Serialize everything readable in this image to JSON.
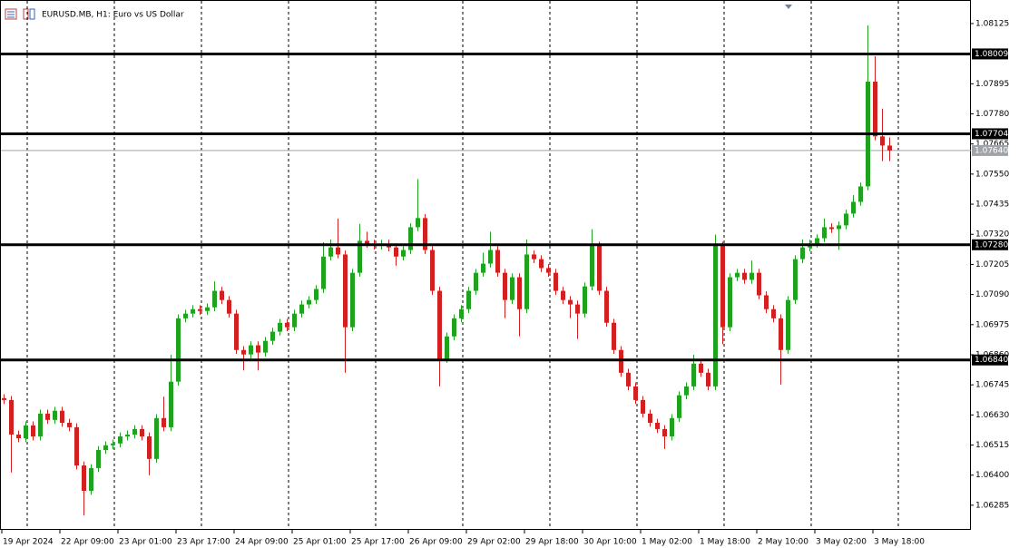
{
  "chart_data": {
    "type": "candlestick",
    "title": "EURUSD.MB, H1: Euro vs US Dollar",
    "up_color": "#1fa31f",
    "down_color": "#d22020",
    "ylim": [
      1.06191,
      1.08215
    ],
    "yticks": [
      {
        "value": 1.08125,
        "label": "1.08125"
      },
      {
        "value": 1.07895,
        "label": "1.07895"
      },
      {
        "value": 1.0778,
        "label": "1.07780"
      },
      {
        "value": 1.07665,
        "label": "1.07665"
      },
      {
        "value": 1.0755,
        "label": "1.07550"
      },
      {
        "value": 1.07435,
        "label": "1.07435"
      },
      {
        "value": 1.0732,
        "label": "1.07320"
      },
      {
        "value": 1.07205,
        "label": "1.07205"
      },
      {
        "value": 1.0709,
        "label": "1.07090"
      },
      {
        "value": 1.06975,
        "label": "1.06975"
      },
      {
        "value": 1.0686,
        "label": "1.06860"
      },
      {
        "value": 1.06745,
        "label": "1.06745"
      },
      {
        "value": 1.0663,
        "label": "1.06630"
      },
      {
        "value": 1.06515,
        "label": "1.06515"
      },
      {
        "value": 1.064,
        "label": "1.06400"
      },
      {
        "value": 1.06285,
        "label": "1.06285"
      }
    ],
    "xticks": [
      {
        "value": 0,
        "label": "19 Apr 2024"
      },
      {
        "value": 8,
        "label": "22 Apr 09:00"
      },
      {
        "value": 16,
        "label": "23 Apr 01:00"
      },
      {
        "value": 24,
        "label": "23 Apr 17:00"
      },
      {
        "value": 32,
        "label": "24 Apr 09:00"
      },
      {
        "value": 40,
        "label": "25 Apr 01:00"
      },
      {
        "value": 48,
        "label": "25 Apr 17:00"
      },
      {
        "value": 56,
        "label": "26 Apr 09:00"
      },
      {
        "value": 64,
        "label": "29 Apr 02:00"
      },
      {
        "value": 72,
        "label": "29 Apr 18:00"
      },
      {
        "value": 80,
        "label": "30 Apr 10:00"
      },
      {
        "value": 88,
        "label": "1 May 02:00"
      },
      {
        "value": 96,
        "label": "1 May 18:00"
      },
      {
        "value": 104,
        "label": "2 May 10:00"
      },
      {
        "value": 112,
        "label": "3 May 02:00"
      },
      {
        "value": 120,
        "label": "3 May 18:00"
      }
    ],
    "levels": [
      {
        "value": 1.08009,
        "label": "1.08009"
      },
      {
        "value": 1.07704,
        "label": "1.07704"
      },
      {
        "value": 1.0728,
        "label": "1.07280"
      },
      {
        "value": 1.0684,
        "label": "1.06840"
      }
    ],
    "current_price": {
      "value": 1.0764,
      "label": "1.07640"
    },
    "candles": [
      [
        1.06694,
        1.06709,
        1.06672,
        1.06687
      ],
      [
        1.06687,
        1.06702,
        1.0641,
        1.06555
      ],
      [
        1.06555,
        1.0657,
        1.06526,
        1.06541
      ],
      [
        1.06541,
        1.06605,
        1.06526,
        1.0659
      ],
      [
        1.0659,
        1.06605,
        1.06533,
        1.06548
      ],
      [
        1.06548,
        1.0665,
        1.06533,
        1.06635
      ],
      [
        1.06635,
        1.0665,
        1.06596,
        1.06611
      ],
      [
        1.06611,
        1.06661,
        1.06596,
        1.06646
      ],
      [
        1.06646,
        1.06661,
        1.06585,
        1.066
      ],
      [
        1.066,
        1.06615,
        1.06568,
        1.06583
      ],
      [
        1.06583,
        1.06598,
        1.06422,
        1.06437
      ],
      [
        1.06437,
        1.06452,
        1.06246,
        1.0634
      ],
      [
        1.0634,
        1.06442,
        1.06325,
        1.06427
      ],
      [
        1.06427,
        1.06511,
        1.06412,
        1.06496
      ],
      [
        1.06496,
        1.06529,
        1.06481,
        1.06514
      ],
      [
        1.06514,
        1.06536,
        1.06499,
        1.06521
      ],
      [
        1.06521,
        1.06563,
        1.06506,
        1.06548
      ],
      [
        1.06548,
        1.0657,
        1.06533,
        1.06555
      ],
      [
        1.06555,
        1.06591,
        1.0654,
        1.06576
      ],
      [
        1.06576,
        1.06591,
        1.06533,
        1.06548
      ],
      [
        1.06548,
        1.06563,
        1.064,
        1.06462
      ],
      [
        1.06462,
        1.06633,
        1.06447,
        1.06618
      ],
      [
        1.06618,
        1.067,
        1.06568,
        1.06583
      ],
      [
        1.06583,
        1.0686,
        1.06568,
        1.06757
      ],
      [
        1.06757,
        1.07014,
        1.06742,
        1.06999
      ],
      [
        1.06999,
        1.07032,
        1.06984,
        1.07017
      ],
      [
        1.07017,
        1.07049,
        1.07002,
        1.07034
      ],
      [
        1.07034,
        1.07049,
        1.07012,
        1.07027
      ],
      [
        1.07027,
        1.07056,
        1.07012,
        1.07041
      ],
      [
        1.07041,
        1.0714,
        1.07026,
        1.07104
      ],
      [
        1.07104,
        1.07119,
        1.07054,
        1.07069
      ],
      [
        1.07069,
        1.07084,
        1.07002,
        1.07017
      ],
      [
        1.07017,
        1.07032,
        1.06863,
        1.06878
      ],
      [
        1.06878,
        1.06893,
        1.068,
        1.06861
      ],
      [
        1.06861,
        1.06911,
        1.06846,
        1.06896
      ],
      [
        1.06896,
        1.06911,
        1.068,
        1.06868
      ],
      [
        1.06868,
        1.06928,
        1.06853,
        1.06913
      ],
      [
        1.06913,
        1.06963,
        1.06898,
        1.06948
      ],
      [
        1.06948,
        1.06997,
        1.06933,
        1.06982
      ],
      [
        1.06982,
        1.06997,
        1.0695,
        1.06965
      ],
      [
        1.06965,
        1.07032,
        1.0695,
        1.07017
      ],
      [
        1.07017,
        1.07067,
        1.07002,
        1.07052
      ],
      [
        1.07052,
        1.07084,
        1.07037,
        1.07069
      ],
      [
        1.07069,
        1.07126,
        1.07054,
        1.07111
      ],
      [
        1.07111,
        1.0729,
        1.07096,
        1.07235
      ],
      [
        1.07235,
        1.073,
        1.0722,
        1.0727
      ],
      [
        1.0727,
        1.0738,
        1.07228,
        1.07243
      ],
      [
        1.07243,
        1.07258,
        1.06791,
        1.06965
      ],
      [
        1.06965,
        1.07188,
        1.0695,
        1.07173
      ],
      [
        1.07173,
        1.0736,
        1.07158,
        1.07295
      ],
      [
        1.07295,
        1.0733,
        1.07269,
        1.07284
      ],
      [
        1.07284,
        1.07299,
        1.07262,
        1.07277
      ],
      [
        1.07277,
        1.07299,
        1.07262,
        1.07284
      ],
      [
        1.07284,
        1.07299,
        1.07255,
        1.0727
      ],
      [
        1.0727,
        1.07285,
        1.072,
        1.07235
      ],
      [
        1.07235,
        1.07275,
        1.0722,
        1.0726
      ],
      [
        1.0726,
        1.07362,
        1.07245,
        1.07347
      ],
      [
        1.07347,
        1.07531,
        1.07332,
        1.07382
      ],
      [
        1.07382,
        1.07397,
        1.07245,
        1.0726
      ],
      [
        1.0726,
        1.07275,
        1.07089,
        1.07104
      ],
      [
        1.07104,
        1.07119,
        1.06739,
        1.06844
      ],
      [
        1.06844,
        1.06945,
        1.06829,
        1.0693
      ],
      [
        1.0693,
        1.07014,
        1.06915,
        1.06999
      ],
      [
        1.06999,
        1.07049,
        1.06984,
        1.07034
      ],
      [
        1.07034,
        1.07119,
        1.07019,
        1.07104
      ],
      [
        1.07104,
        1.07188,
        1.07089,
        1.07173
      ],
      [
        1.07173,
        1.0725,
        1.07158,
        1.07208
      ],
      [
        1.07208,
        1.0733,
        1.07193,
        1.0726
      ],
      [
        1.0726,
        1.07275,
        1.07158,
        1.07173
      ],
      [
        1.07173,
        1.07188,
        1.07,
        1.07069
      ],
      [
        1.07069,
        1.07171,
        1.07054,
        1.07156
      ],
      [
        1.07156,
        1.07171,
        1.0693,
        1.07034
      ],
      [
        1.07034,
        1.073,
        1.07019,
        1.07243
      ],
      [
        1.07243,
        1.07258,
        1.0721,
        1.07225
      ],
      [
        1.07225,
        1.0724,
        1.07176,
        1.07191
      ],
      [
        1.07191,
        1.07206,
        1.07158,
        1.07173
      ],
      [
        1.07173,
        1.07188,
        1.07089,
        1.07104
      ],
      [
        1.07104,
        1.07119,
        1.07054,
        1.07069
      ],
      [
        1.07069,
        1.07084,
        1.07,
        1.07052
      ],
      [
        1.07052,
        1.07067,
        1.0692,
        1.07017
      ],
      [
        1.07017,
        1.07136,
        1.07002,
        1.07121
      ],
      [
        1.07121,
        1.0734,
        1.07106,
        1.07277
      ],
      [
        1.07277,
        1.07292,
        1.07089,
        1.07104
      ],
      [
        1.07104,
        1.07119,
        1.06967,
        1.06982
      ],
      [
        1.06982,
        1.06997,
        1.06863,
        1.06878
      ],
      [
        1.06878,
        1.06893,
        1.06776,
        1.06791
      ],
      [
        1.06791,
        1.06806,
        1.06724,
        1.06739
      ],
      [
        1.06739,
        1.06754,
        1.06672,
        1.06687
      ],
      [
        1.06687,
        1.06702,
        1.0662,
        1.06635
      ],
      [
        1.06635,
        1.0665,
        1.06585,
        1.066
      ],
      [
        1.066,
        1.06615,
        1.06561,
        1.06576
      ],
      [
        1.06576,
        1.06591,
        1.065,
        1.06548
      ],
      [
        1.06548,
        1.06633,
        1.06533,
        1.06618
      ],
      [
        1.06618,
        1.0672,
        1.06603,
        1.06705
      ],
      [
        1.06705,
        1.06754,
        1.0669,
        1.06739
      ],
      [
        1.06739,
        1.0686,
        1.06724,
        1.06826
      ],
      [
        1.06826,
        1.06841,
        1.06776,
        1.06791
      ],
      [
        1.06791,
        1.06806,
        1.06724,
        1.06739
      ],
      [
        1.06739,
        1.07319,
        1.06724,
        1.07277
      ],
      [
        1.07277,
        1.07292,
        1.069,
        1.06965
      ],
      [
        1.06965,
        1.07171,
        1.0695,
        1.07156
      ],
      [
        1.07156,
        1.07188,
        1.07141,
        1.07173
      ],
      [
        1.07173,
        1.07188,
        1.07131,
        1.07146
      ],
      [
        1.07146,
        1.0722,
        1.07131,
        1.07173
      ],
      [
        1.07173,
        1.07188,
        1.07072,
        1.07087
      ],
      [
        1.07087,
        1.07102,
        1.07019,
        1.07034
      ],
      [
        1.07034,
        1.07049,
        1.06984,
        1.06999
      ],
      [
        1.06999,
        1.07014,
        1.06746,
        1.06878
      ],
      [
        1.06878,
        1.07084,
        1.06863,
        1.07069
      ],
      [
        1.07069,
        1.0724,
        1.07054,
        1.07225
      ],
      [
        1.07225,
        1.073,
        1.0721,
        1.0727
      ],
      [
        1.0727,
        1.07299,
        1.07255,
        1.07284
      ],
      [
        1.07284,
        1.0732,
        1.07269,
        1.07305
      ],
      [
        1.07305,
        1.0738,
        1.0729,
        1.07347
      ],
      [
        1.07347,
        1.07362,
        1.07325,
        1.0734
      ],
      [
        1.0734,
        1.07369,
        1.0726,
        1.07354
      ],
      [
        1.07354,
        1.07414,
        1.07339,
        1.07399
      ],
      [
        1.07399,
        1.0747,
        1.07384,
        1.07444
      ],
      [
        1.07444,
        1.07518,
        1.07429,
        1.07503
      ],
      [
        1.07503,
        1.08118,
        1.07488,
        1.07903
      ],
      [
        1.07903,
        1.08,
        1.07679,
        1.07694
      ],
      [
        1.07694,
        1.078,
        1.076,
        1.07659
      ],
      [
        1.07659,
        1.0769,
        1.076,
        1.0764
      ]
    ]
  }
}
